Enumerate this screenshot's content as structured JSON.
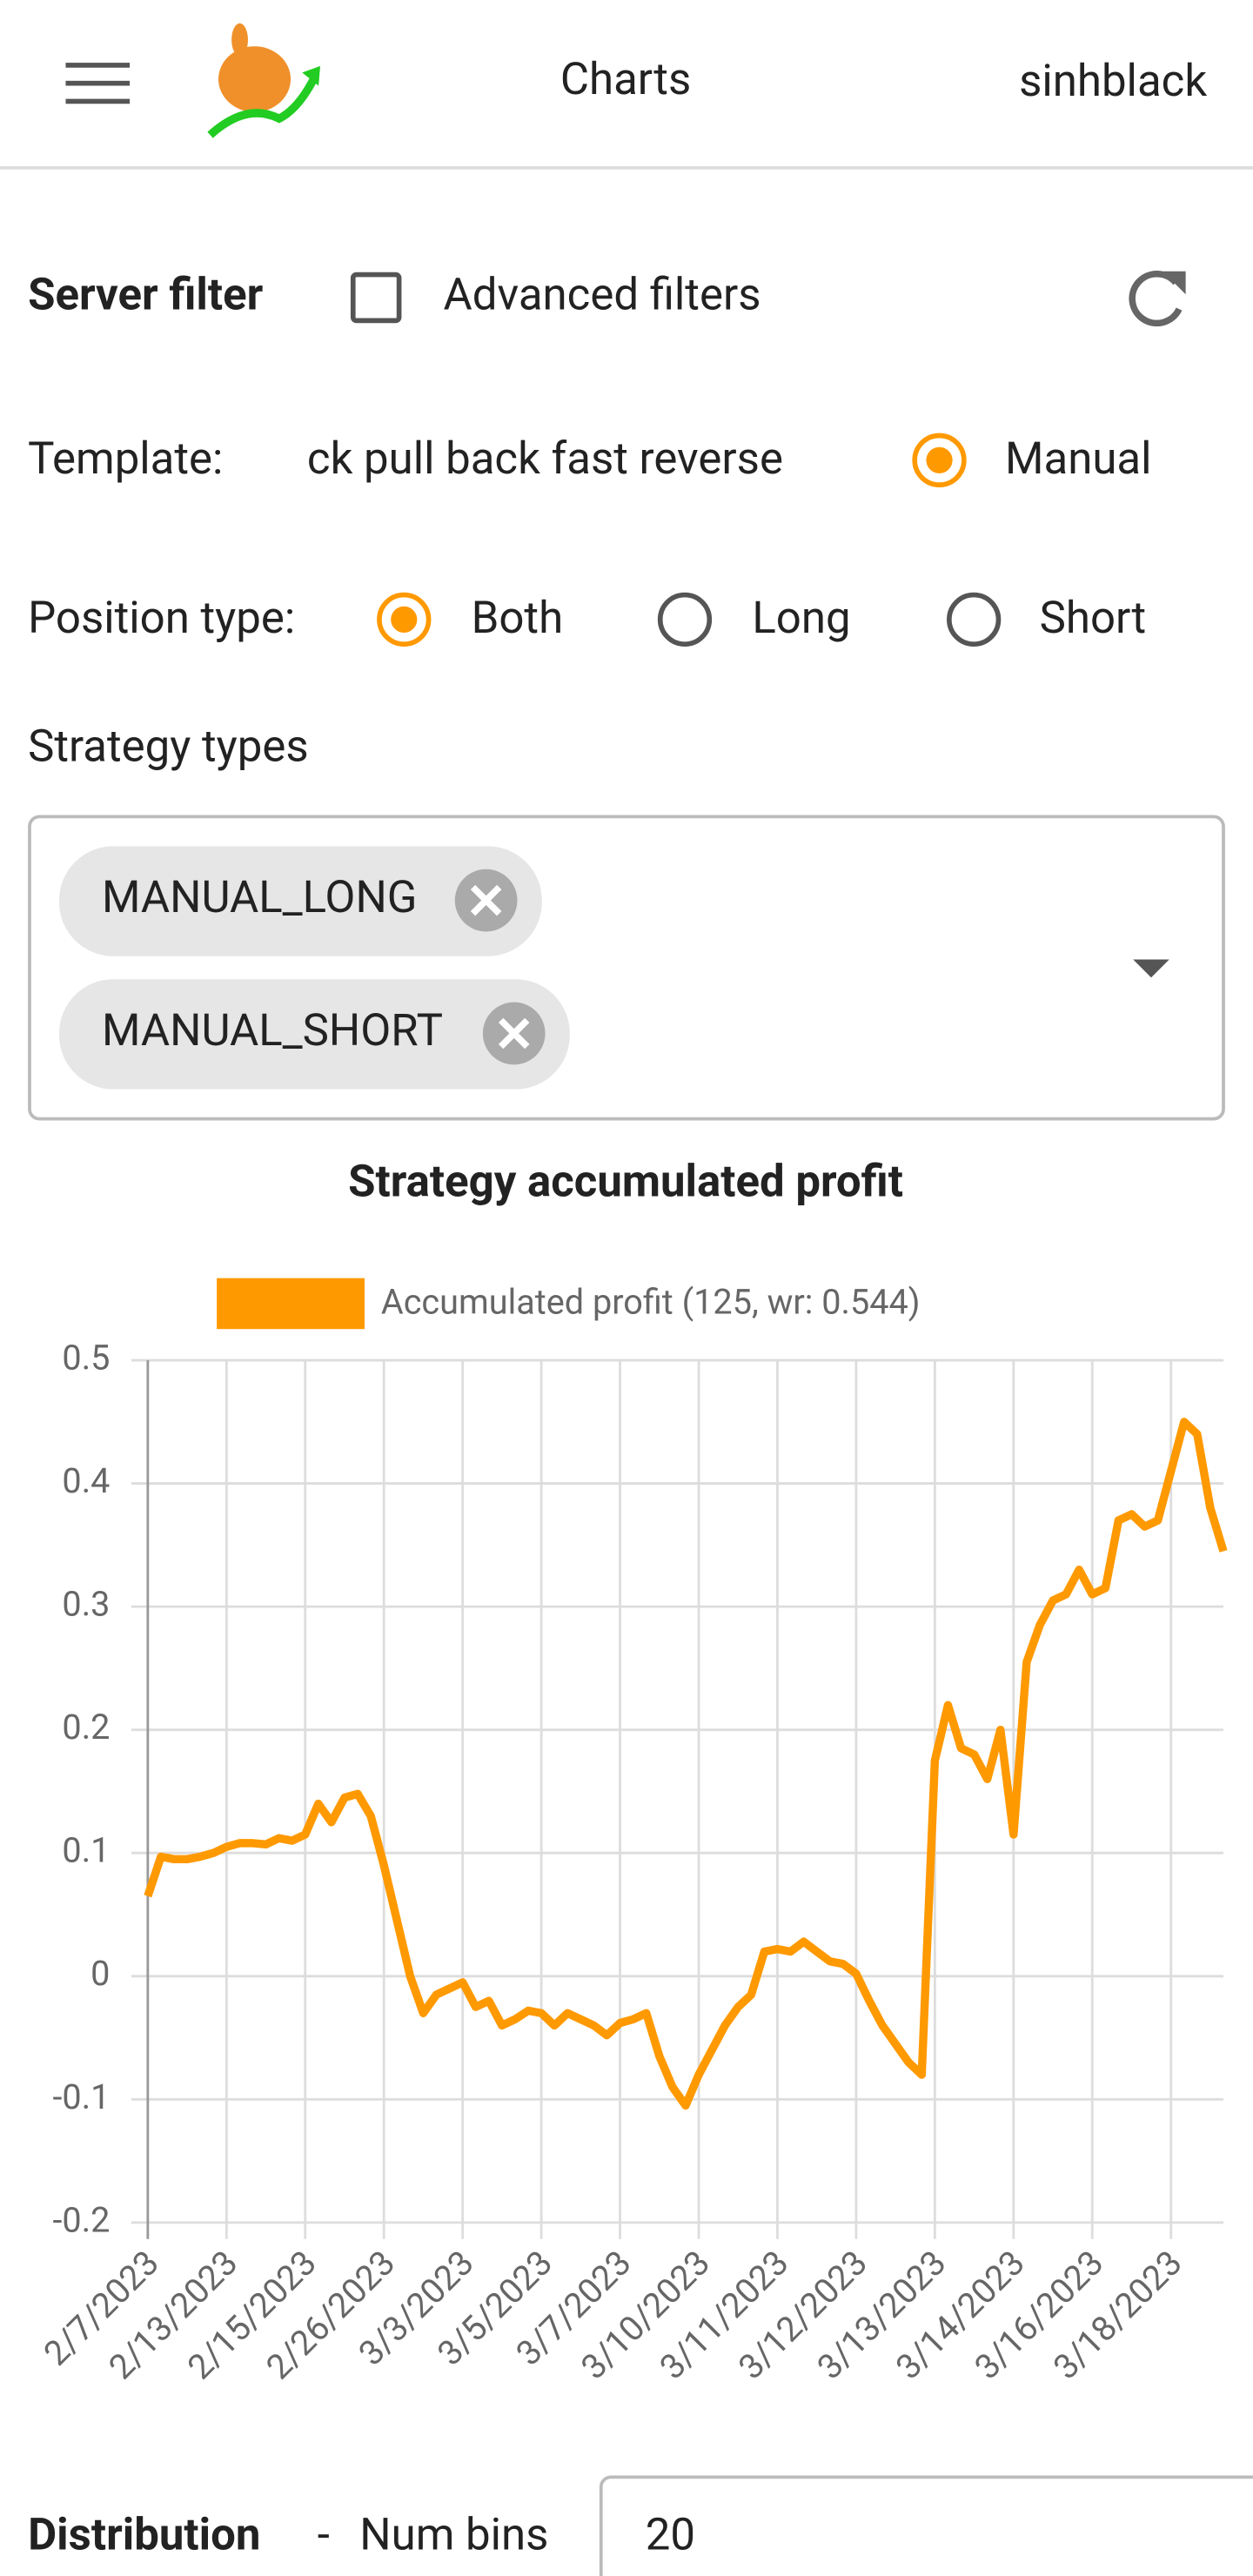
{
  "header": {
    "title": "Charts",
    "user": "sinhblack"
  },
  "filters": {
    "server_filter": "Server filter",
    "advanced_filters": "Advanced filters",
    "template_label": "Template:",
    "template_value": "ck pull back fast reverse",
    "manual": "Manual",
    "position_type_label": "Position type:",
    "position_options": [
      "Both",
      "Long",
      "Short"
    ],
    "strategy_types_label": "Strategy types",
    "strategy_types": [
      "MANUAL_LONG",
      "MANUAL_SHORT"
    ]
  },
  "chart_data": {
    "type": "line",
    "title": "Strategy accumulated profit",
    "categories": [
      "2/7/2023",
      null,
      null,
      null,
      null,
      null,
      "2/13/2023",
      null,
      null,
      null,
      null,
      null,
      "2/15/2023",
      null,
      null,
      null,
      null,
      null,
      "2/26/2023",
      null,
      null,
      null,
      null,
      null,
      "3/3/2023",
      null,
      null,
      null,
      null,
      null,
      "3/5/2023",
      null,
      null,
      null,
      null,
      null,
      "3/7/2023",
      null,
      null,
      null,
      null,
      null,
      "3/10/2023",
      null,
      null,
      null,
      null,
      null,
      "3/11/2023",
      null,
      null,
      null,
      null,
      null,
      "3/12/2023",
      null,
      null,
      null,
      null,
      null,
      "3/13/2023",
      null,
      null,
      null,
      null,
      null,
      "3/14/2023",
      null,
      null,
      null,
      null,
      null,
      "3/16/2023",
      null,
      null,
      null,
      null,
      null,
      "3/18/2023",
      null,
      null,
      null,
      null
    ],
    "series": [
      {
        "name": "Accumulated profit (125, wr: 0.544)",
        "color": "#ff9900",
        "values": [
          0.065,
          0.097,
          0.095,
          0.095,
          0.097,
          0.1,
          0.105,
          0.108,
          0.108,
          0.107,
          0.112,
          0.11,
          0.115,
          0.14,
          0.125,
          0.145,
          0.148,
          0.13,
          0.09,
          0.045,
          0.0,
          -0.03,
          -0.015,
          -0.01,
          -0.005,
          -0.025,
          -0.02,
          -0.04,
          -0.035,
          -0.028,
          -0.03,
          -0.04,
          -0.03,
          -0.035,
          -0.04,
          -0.048,
          -0.038,
          -0.035,
          -0.03,
          -0.065,
          -0.09,
          -0.105,
          -0.08,
          -0.06,
          -0.04,
          -0.025,
          -0.015,
          0.02,
          0.022,
          0.02,
          0.028,
          0.02,
          0.012,
          0.01,
          0.002,
          -0.02,
          -0.04,
          -0.055,
          -0.07,
          -0.08,
          0.175,
          0.22,
          0.185,
          0.18,
          0.16,
          0.2,
          0.115,
          0.255,
          0.285,
          0.305,
          0.31,
          0.33,
          0.31,
          0.315,
          0.37,
          0.375,
          0.365,
          0.37,
          0.41,
          0.45,
          0.44,
          0.38,
          0.345
        ]
      }
    ],
    "ylim": [
      -0.2,
      0.5
    ],
    "yticks": [
      -0.2,
      -0.1,
      0,
      0.1,
      0.2,
      0.3,
      0.4,
      0.5
    ],
    "grid": true
  },
  "distribution": {
    "label": "Distribution",
    "separator": "-",
    "num_bins_label": "Num bins",
    "num_bins": "20"
  }
}
